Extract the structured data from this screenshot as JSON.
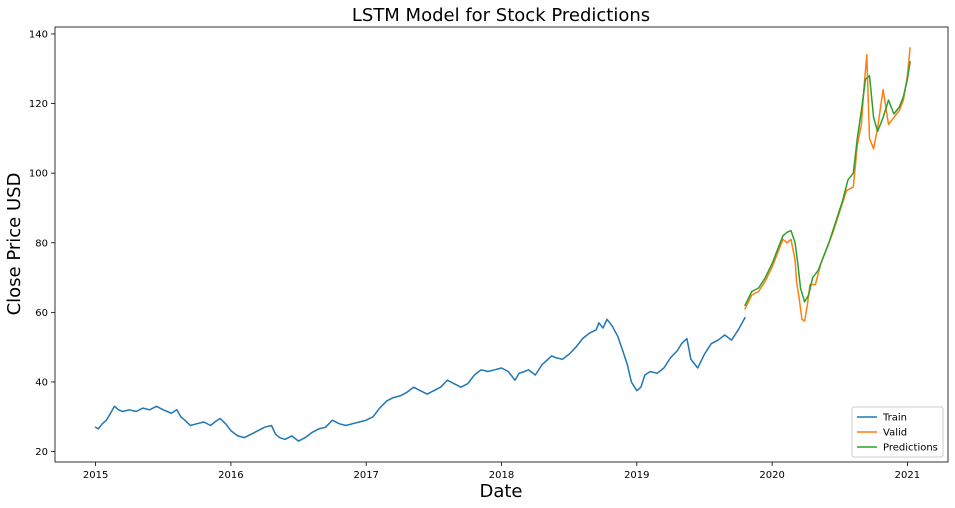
{
  "chart_data": {
    "type": "line",
    "title": "LSTM Model for Stock Predictions",
    "xlabel": "Date",
    "ylabel": "Close Price USD",
    "xlim": [
      2014.7,
      2021.3
    ],
    "ylim": [
      17,
      142
    ],
    "x_ticks": [
      2015,
      2016,
      2017,
      2018,
      2019,
      2020,
      2021
    ],
    "y_ticks": [
      20,
      40,
      60,
      80,
      100,
      120,
      140
    ],
    "grid": false,
    "legend_position": "bottom-right",
    "series": [
      {
        "name": "Train",
        "color": "#1f77b4",
        "x": [
          2015.0,
          2015.02,
          2015.05,
          2015.08,
          2015.11,
          2015.14,
          2015.17,
          2015.2,
          2015.25,
          2015.3,
          2015.35,
          2015.4,
          2015.45,
          2015.5,
          2015.53,
          2015.56,
          2015.6,
          2015.63,
          2015.66,
          2015.7,
          2015.75,
          2015.8,
          2015.85,
          2015.88,
          2015.92,
          2015.96,
          2016.0,
          2016.05,
          2016.1,
          2016.15,
          2016.2,
          2016.25,
          2016.3,
          2016.33,
          2016.36,
          2016.4,
          2016.45,
          2016.5,
          2016.55,
          2016.6,
          2016.65,
          2016.7,
          2016.75,
          2016.8,
          2016.85,
          2016.9,
          2016.95,
          2017.0,
          2017.05,
          2017.1,
          2017.15,
          2017.2,
          2017.25,
          2017.3,
          2017.35,
          2017.4,
          2017.45,
          2017.5,
          2017.55,
          2017.6,
          2017.65,
          2017.7,
          2017.75,
          2017.8,
          2017.85,
          2017.9,
          2017.95,
          2018.0,
          2018.05,
          2018.1,
          2018.13,
          2018.17,
          2018.2,
          2018.25,
          2018.3,
          2018.33,
          2018.37,
          2018.4,
          2018.45,
          2018.5,
          2018.55,
          2018.6,
          2018.65,
          2018.7,
          2018.72,
          2018.75,
          2018.78,
          2018.82,
          2018.86,
          2018.9,
          2018.93,
          2018.96,
          2019.0,
          2019.03,
          2019.06,
          2019.1,
          2019.15,
          2019.2,
          2019.25,
          2019.3,
          2019.33,
          2019.37,
          2019.4,
          2019.45,
          2019.5,
          2019.55,
          2019.6,
          2019.65,
          2019.7,
          2019.75,
          2019.8
        ],
        "y": [
          27,
          26.5,
          28,
          29,
          31,
          33,
          32,
          31.5,
          32,
          31.5,
          32.5,
          32,
          33,
          32,
          31.5,
          31,
          32,
          30,
          29,
          27.5,
          28,
          28.5,
          27.5,
          28.5,
          29.5,
          28,
          26,
          24.5,
          24,
          25,
          26,
          27,
          27.5,
          25,
          24,
          23.5,
          24.5,
          23,
          24,
          25.5,
          26.5,
          27,
          29,
          28,
          27.5,
          28,
          28.5,
          29,
          30,
          32.5,
          34.5,
          35.5,
          36,
          37,
          38.5,
          37.5,
          36.5,
          37.5,
          38.5,
          40.5,
          39.5,
          38.5,
          39.5,
          42,
          43.5,
          43,
          43.5,
          44,
          43,
          40.5,
          42.5,
          43,
          43.5,
          42,
          45,
          46,
          47.5,
          47,
          46.5,
          48,
          50,
          52.5,
          54,
          55,
          57,
          55.5,
          58,
          56,
          53,
          48.5,
          45,
          40,
          37.5,
          38.5,
          42,
          43,
          42.5,
          44,
          47,
          49,
          51,
          52.5,
          46.5,
          44,
          48,
          51,
          52,
          53.5,
          52,
          55,
          58.5
        ]
      },
      {
        "name": "Valid",
        "color": "#ff7f0e",
        "x": [
          2019.8,
          2019.85,
          2019.9,
          2019.95,
          2020.0,
          2020.05,
          2020.08,
          2020.11,
          2020.14,
          2020.17,
          2020.18,
          2020.2,
          2020.22,
          2020.24,
          2020.26,
          2020.28,
          2020.32,
          2020.36,
          2020.4,
          2020.45,
          2020.5,
          2020.55,
          2020.6,
          2020.63,
          2020.66,
          2020.68,
          2020.7,
          2020.72,
          2020.75,
          2020.78,
          2020.82,
          2020.86,
          2020.9,
          2020.94,
          2020.97,
          2021.0,
          2021.02
        ],
        "y": [
          61,
          65,
          66,
          69,
          73,
          78,
          81,
          80,
          81,
          75,
          69,
          64,
          58,
          57.5,
          62,
          68,
          68,
          74,
          78,
          83,
          89,
          95,
          96,
          108,
          114,
          125,
          134,
          110,
          107,
          113,
          124,
          114,
          116,
          118,
          121,
          128,
          136
        ]
      },
      {
        "name": "Predictions",
        "color": "#2ca02c",
        "x": [
          2019.8,
          2019.85,
          2019.9,
          2019.95,
          2020.0,
          2020.05,
          2020.08,
          2020.11,
          2020.14,
          2020.17,
          2020.19,
          2020.21,
          2020.24,
          2020.27,
          2020.3,
          2020.34,
          2020.38,
          2020.42,
          2020.47,
          2020.52,
          2020.56,
          2020.6,
          2020.63,
          2020.66,
          2020.69,
          2020.72,
          2020.75,
          2020.78,
          2020.82,
          2020.86,
          2020.9,
          2020.94,
          2020.97,
          2021.0,
          2021.02
        ],
        "y": [
          62,
          66,
          67,
          70,
          74,
          79,
          82,
          83,
          83.5,
          80,
          74,
          67,
          63,
          65,
          70,
          72,
          76,
          80,
          86,
          92,
          98,
          100,
          110,
          118,
          127,
          128,
          116,
          112,
          116,
          121,
          117,
          119,
          122,
          127,
          132
        ]
      }
    ]
  }
}
